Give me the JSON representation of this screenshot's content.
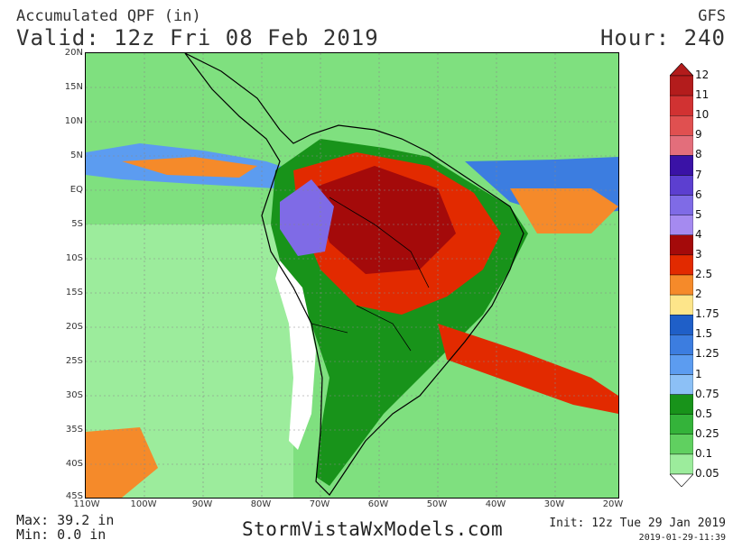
{
  "header": {
    "title": "Accumulated QPF (in)",
    "valid": "Valid: 12z Fri 08 Feb 2019",
    "model": "GFS",
    "hour": "Hour: 240"
  },
  "map": {
    "lat_labels": [
      "20N",
      "15N",
      "10N",
      "5N",
      "EQ",
      "5S",
      "10S",
      "15S",
      "20S",
      "25S",
      "30S",
      "35S",
      "40S",
      "45S"
    ],
    "lon_labels": [
      "110W",
      "100W",
      "90W",
      "80W",
      "70W",
      "60W",
      "50W",
      "40W",
      "30W",
      "20W"
    ]
  },
  "legend": {
    "levels": [
      "12",
      "11",
      "10",
      "9",
      "8",
      "7",
      "6",
      "5",
      "4",
      "3",
      "2.5",
      "2",
      "1.75",
      "1.5",
      "1.25",
      "1",
      "0.75",
      "0.5",
      "0.25",
      "0.1",
      "0.05"
    ],
    "colors": [
      "#b31c1c",
      "#d13232",
      "#e05050",
      "#e36e7b",
      "#3a12a6",
      "#5c3fd0",
      "#7f6be6",
      "#a58af0",
      "#a40a0a",
      "#e22a00",
      "#f58a2a",
      "#fde58a",
      "#1f5fc8",
      "#3c7de0",
      "#5c9cf0",
      "#8cc0f6",
      "#18931a",
      "#34b33a",
      "#60d060",
      "#9cec9c",
      "#ffffff"
    ]
  },
  "footer": {
    "max": "Max: 39.2 in",
    "min": "Min: 0.0 in",
    "site": "StormVistaWxModels.com",
    "init": "Init: 12z Tue 29 Jan 2019",
    "stamp": "2019-01-29-11:39"
  }
}
